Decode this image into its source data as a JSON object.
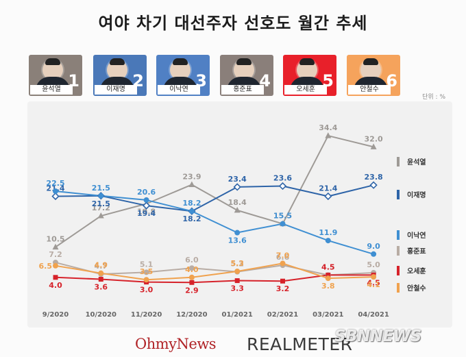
{
  "title": "여야 차기 대선주자 선호도 월간 추세",
  "unit": "단위 : %",
  "candidates": [
    {
      "name": "윤석열",
      "number": "1",
      "color": "#8a8079"
    },
    {
      "name": "이재명",
      "number": "2",
      "color": "#4a78b8"
    },
    {
      "name": "이낙연",
      "number": "3",
      "color": "#5080c4"
    },
    {
      "name": "홍준표",
      "number": "4",
      "color": "#8a7f7a"
    },
    {
      "name": "오세훈",
      "number": "5",
      "color": "#e8202a"
    },
    {
      "name": "안철수",
      "number": "6",
      "color": "#f5a35c"
    }
  ],
  "footer": {
    "brand_left": "OhmyNews",
    "brand_right": "REALMETER",
    "watermark": "SBNNEWS"
  },
  "chart_data": {
    "type": "line",
    "categories": [
      "9/2020",
      "10/2020",
      "11/2020",
      "12/2020",
      "01/2021",
      "02/2021",
      "03/2021",
      "04/2021"
    ],
    "ylim": [
      0,
      40
    ],
    "grid": false,
    "legend_position": "right",
    "series": [
      {
        "name": "윤석열",
        "color": "#9e9a96",
        "marker": "triangle",
        "values": [
          10.5,
          17.2,
          19.8,
          23.9,
          18.4,
          15.5,
          34.4,
          32.0
        ],
        "labels": [
          "10.5",
          "17.2",
          "19.8",
          "23.9",
          "18.4",
          "15.5",
          "34.4",
          "32.0"
        ],
        "label_pos": [
          "above",
          "above",
          "below",
          "above",
          "above",
          "above",
          "above",
          "above"
        ]
      },
      {
        "name": "이재명",
        "color": "#2e64a8",
        "marker": "diamond",
        "values": [
          21.4,
          21.5,
          19.4,
          18.2,
          23.4,
          23.6,
          21.4,
          23.8
        ],
        "labels": [
          "21.4",
          "21.5",
          "19.4",
          "18.2",
          "23.4",
          "23.6",
          "21.4",
          "23.8"
        ],
        "label_pos": [
          "above",
          "below",
          "below",
          "below",
          "above",
          "above",
          "above",
          "above"
        ]
      },
      {
        "name": "이낙연",
        "color": "#3f8fd2",
        "marker": "circle",
        "values": [
          22.5,
          21.5,
          20.6,
          18.2,
          13.6,
          15.5,
          11.9,
          9.0
        ],
        "labels": [
          "22.5",
          "21.5",
          "20.6",
          "18.2",
          "13.6",
          "15.5",
          "11.9",
          "9.0"
        ],
        "label_pos": [
          "above",
          "above",
          "above",
          "above",
          "below",
          "above",
          "above",
          "above"
        ]
      },
      {
        "name": "홍준표",
        "color": "#b8aca4",
        "marker": "circle",
        "values": [
          7.2,
          4.7,
          5.1,
          6.0,
          5.2,
          6.6,
          4.5,
          5.0
        ],
        "labels": [
          "7.2",
          "4.7",
          "5.1",
          "6.0",
          "5.2",
          "6.6",
          "4.5",
          "5.0"
        ],
        "label_pos": [
          "above",
          "above",
          "above",
          "above",
          "above",
          "above",
          "above",
          "above"
        ]
      },
      {
        "name": "오세훈",
        "color": "#d6222a",
        "marker": "square",
        "values": [
          4.0,
          3.6,
          3.0,
          2.9,
          3.3,
          3.2,
          4.5,
          4.5
        ],
        "labels": [
          "4.0",
          "3.6",
          "3.0",
          "2.9",
          "3.3",
          "3.2",
          "4.5",
          "4.5"
        ],
        "label_pos": [
          "below",
          "below",
          "below",
          "below",
          "below",
          "below",
          "above",
          "below"
        ]
      },
      {
        "name": "안철수",
        "color": "#f0a24e",
        "marker": "circle",
        "values": [
          6.5,
          4.9,
          3.5,
          4.0,
          5.3,
          7.0,
          3.8,
          4.1
        ],
        "labels": [
          "6.5",
          "4.9",
          "3.5",
          "4.0",
          "5.3",
          "7.0",
          "3.8",
          "4.1"
        ],
        "label_pos": [
          "left",
          "above",
          "above",
          "above",
          "above",
          "above",
          "below",
          "below"
        ]
      }
    ]
  }
}
